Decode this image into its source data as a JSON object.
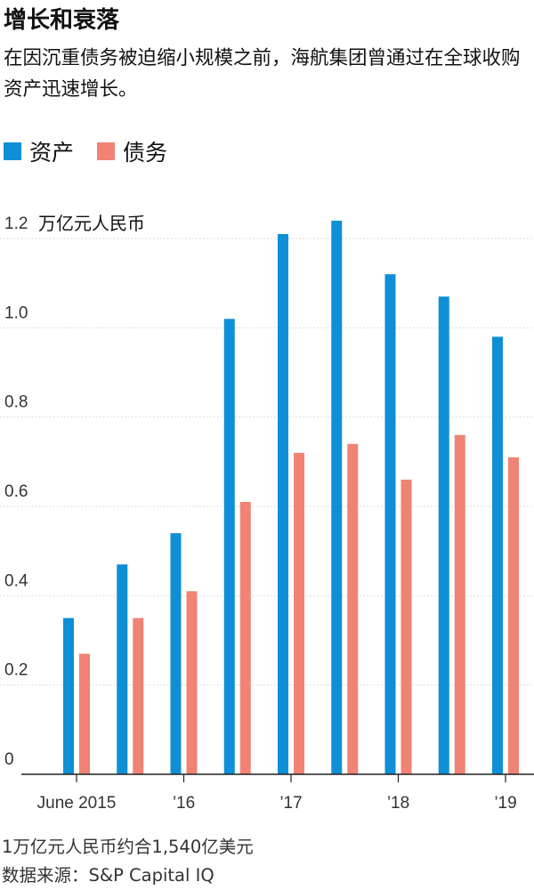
{
  "chart_data": {
    "type": "bar",
    "title": "增长和衰落",
    "subtitle": "在因沉重债务被迫缩小规模之前，海航集团曾通过在全球收购资产迅速增长。",
    "ylabel": "万亿元人民币",
    "ylim": [
      0,
      1.2
    ],
    "yticks": [
      "0",
      "0.2",
      "0.4",
      "0.6",
      "0.8",
      "1.0",
      "1.2"
    ],
    "xtick_labels": [
      "June 2015",
      "’16",
      "’17",
      "’18",
      "’19"
    ],
    "xtick_positions": [
      0,
      2,
      4,
      6,
      8
    ],
    "grid": true,
    "legend_position": "top-left",
    "categories": [
      "2015-06",
      "2015-12",
      "2016-06",
      "2016-12",
      "2017-06",
      "2017-12",
      "2018-06",
      "2018-12",
      "2019-06"
    ],
    "series": [
      {
        "name": "资产",
        "color": "#0f8fd6",
        "values": [
          0.35,
          0.47,
          0.54,
          1.02,
          1.21,
          1.24,
          1.12,
          1.07,
          0.98
        ]
      },
      {
        "name": "债务",
        "color": "#f08373",
        "values": [
          0.27,
          0.35,
          0.41,
          0.61,
          0.72,
          0.74,
          0.66,
          0.76,
          0.71
        ]
      }
    ],
    "notes": [
      "1万亿元人民币约合1,540亿美元",
      "数据来源：S&P Capital IQ"
    ]
  }
}
